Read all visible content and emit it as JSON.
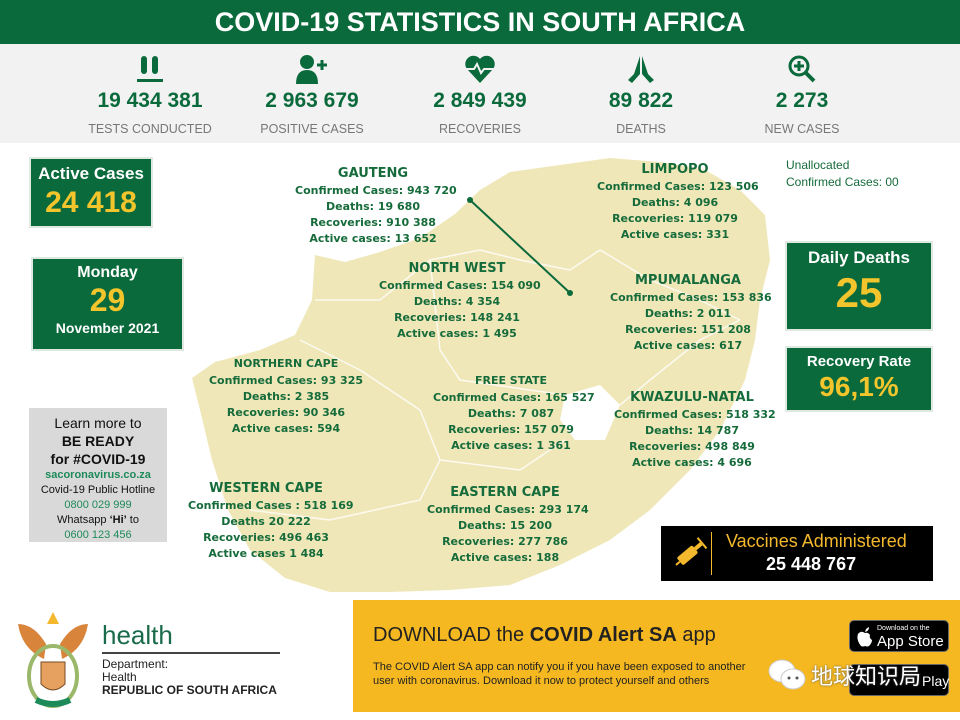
{
  "title": "COVID-19 STATISTICS IN SOUTH AFRICA",
  "stats": [
    {
      "icon": "test-tubes-icon",
      "value": "19 434 381",
      "label": "TESTS CONDUCTED"
    },
    {
      "icon": "add-person-icon",
      "value": "2 963 679",
      "label": "POSITIVE CASES"
    },
    {
      "icon": "heartbeat-icon",
      "value": "2 849 439",
      "label": "RECOVERIES"
    },
    {
      "icon": "praying-hands-icon",
      "value": "89 822",
      "label": "DEATHS"
    },
    {
      "icon": "zoom-plus-icon",
      "value": "2 273",
      "label": "NEW CASES"
    }
  ],
  "active_cases": {
    "label": "Active Cases",
    "value": "24 418"
  },
  "date": {
    "weekday": "Monday",
    "day": "29",
    "month_year": "November 2021"
  },
  "unallocated": {
    "line1": "Unallocated",
    "line2": "Confirmed Cases: 00"
  },
  "daily_deaths": {
    "label": "Daily Deaths",
    "value": "25"
  },
  "recovery_rate": {
    "label": "Recovery Rate",
    "value": "96,1%"
  },
  "regions": [
    {
      "name": "GAUTENG",
      "lines": [
        "Confirmed Cases: 943 720",
        "Deaths: 19 680",
        "Recoveries: 910 388",
        "Active cases: 13 652"
      ]
    },
    {
      "name": "LIMPOPO",
      "lines": [
        "Confirmed Cases: 123 506",
        "Deaths:  4 096",
        "Recoveries: 119 079",
        "Active cases: 331"
      ]
    },
    {
      "name": "NORTH WEST",
      "lines": [
        "Confirmed Cases: 154 090",
        "Deaths: 4 354",
        "Recoveries: 148 241",
        "Active cases: 1 495"
      ]
    },
    {
      "name": "MPUMALANGA",
      "lines": [
        "Confirmed Cases: 153 836",
        "Deaths:  2 011",
        "Recoveries: 151 208",
        "Active cases: 617"
      ]
    },
    {
      "name": "NORTHERN CAPE",
      "lines": [
        "Confirmed Cases:  93 325",
        "Deaths: 2 385",
        "Recoveries: 90 346",
        "Active cases: 594"
      ]
    },
    {
      "name": "FREE STATE",
      "lines": [
        "Confirmed Cases: 165 527",
        "Deaths: 7 087",
        "Recoveries: 157 079",
        "Active cases: 1 361"
      ]
    },
    {
      "name": "KWAZULU-NATAL",
      "lines": [
        "Confirmed Cases: 518 332",
        "Deaths: 14 787",
        "Recoveries: 498 849",
        "Active cases: 4 696"
      ]
    },
    {
      "name": "WESTERN CAPE",
      "lines": [
        "Confirmed Cases : 518 169",
        "Deaths 20 222",
        "Recoveries: 496 463",
        "Active cases 1 484"
      ]
    },
    {
      "name": "EASTERN CAPE",
      "lines": [
        "Confirmed Cases: 293 174",
        "Deaths: 15 200",
        "Recoveries: 277 786",
        "Active cases: 188"
      ]
    }
  ],
  "learn": {
    "l1": "Learn more to",
    "l2": "BE READY",
    "l3": "for #COVID-19",
    "site": "sacoronavirus.co.za",
    "hotline_label": "Covid-19 Public Hotline",
    "hotline": "0800 029 999",
    "whatsapp_pre": "Whatsapp ",
    "whatsapp_hi": "‘Hi’",
    "whatsapp_post": " to",
    "whatsapp": "0600 123 456"
  },
  "vaccines": {
    "label": "Vaccines Administered",
    "value": "25 448 767",
    "icon": "syringe-icon"
  },
  "banner": {
    "pre": "DOWNLOAD the ",
    "bold": "COVID Alert SA",
    "post": " app",
    "body1": "The COVID Alert SA app can notify you if you have been exposed to another",
    "body2": "user with coronavirus. Download it now to protect yourself and others",
    "appstore_small": "Download on the",
    "appstore": "App Store",
    "googleplay": "Play"
  },
  "logo": {
    "word": "health",
    "dept1": "Department:",
    "dept2": "Health",
    "country": "REPUBLIC OF SOUTH AFRICA"
  },
  "watermark": "地球知识局",
  "colors": {
    "green": "#0b6a3c",
    "yellow": "#f5b820",
    "map": "#efe7b8",
    "accent_number": "#f3c52c"
  }
}
